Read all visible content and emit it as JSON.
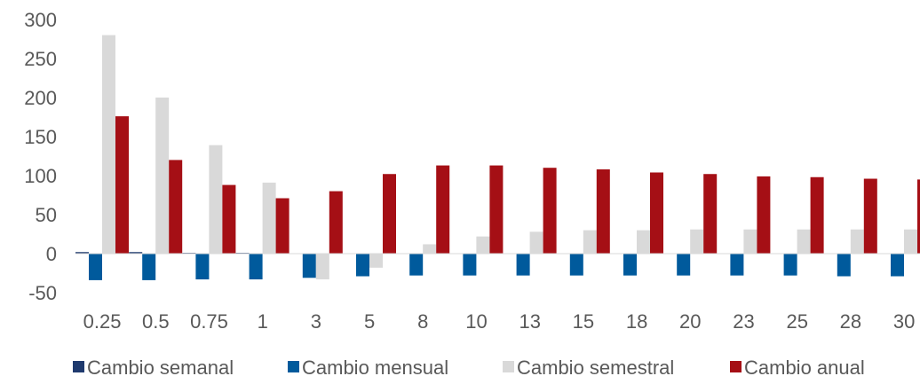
{
  "chart_data": {
    "type": "bar",
    "title": "",
    "xlabel": "",
    "ylabel": "",
    "ylim": [
      -50,
      300
    ],
    "yticks": [
      -50,
      0,
      50,
      100,
      150,
      200,
      250,
      300
    ],
    "grid": false,
    "legend_position": "bottom",
    "categories": [
      "0.25",
      "0.5",
      "0.75",
      "1",
      "3",
      "5",
      "8",
      "10",
      "13",
      "15",
      "18",
      "20",
      "23",
      "25",
      "28",
      "30"
    ],
    "series": [
      {
        "name": "Cambio semanal",
        "color": "#1f3a6e",
        "values": [
          2,
          2,
          1,
          1,
          0,
          0,
          0,
          0,
          0,
          0,
          0,
          0,
          0,
          0,
          0,
          0
        ]
      },
      {
        "name": "Cambio mensual",
        "color": "#005a9c",
        "values": [
          -34,
          -34,
          -33,
          -33,
          -31,
          -29,
          -28,
          -28,
          -28,
          -28,
          -28,
          -28,
          -28,
          -28,
          -29,
          -29
        ]
      },
      {
        "name": "Cambio semestral",
        "color": "#d9d9d9",
        "values": [
          280,
          200,
          139,
          91,
          -33,
          -18,
          12,
          22,
          28,
          30,
          30,
          31,
          31,
          31,
          31,
          31
        ]
      },
      {
        "name": "Cambio anual",
        "color": "#a50f15",
        "values": [
          176,
          120,
          88,
          71,
          80,
          102,
          113,
          113,
          110,
          108,
          104,
          102,
          99,
          98,
          96,
          95
        ]
      }
    ]
  }
}
